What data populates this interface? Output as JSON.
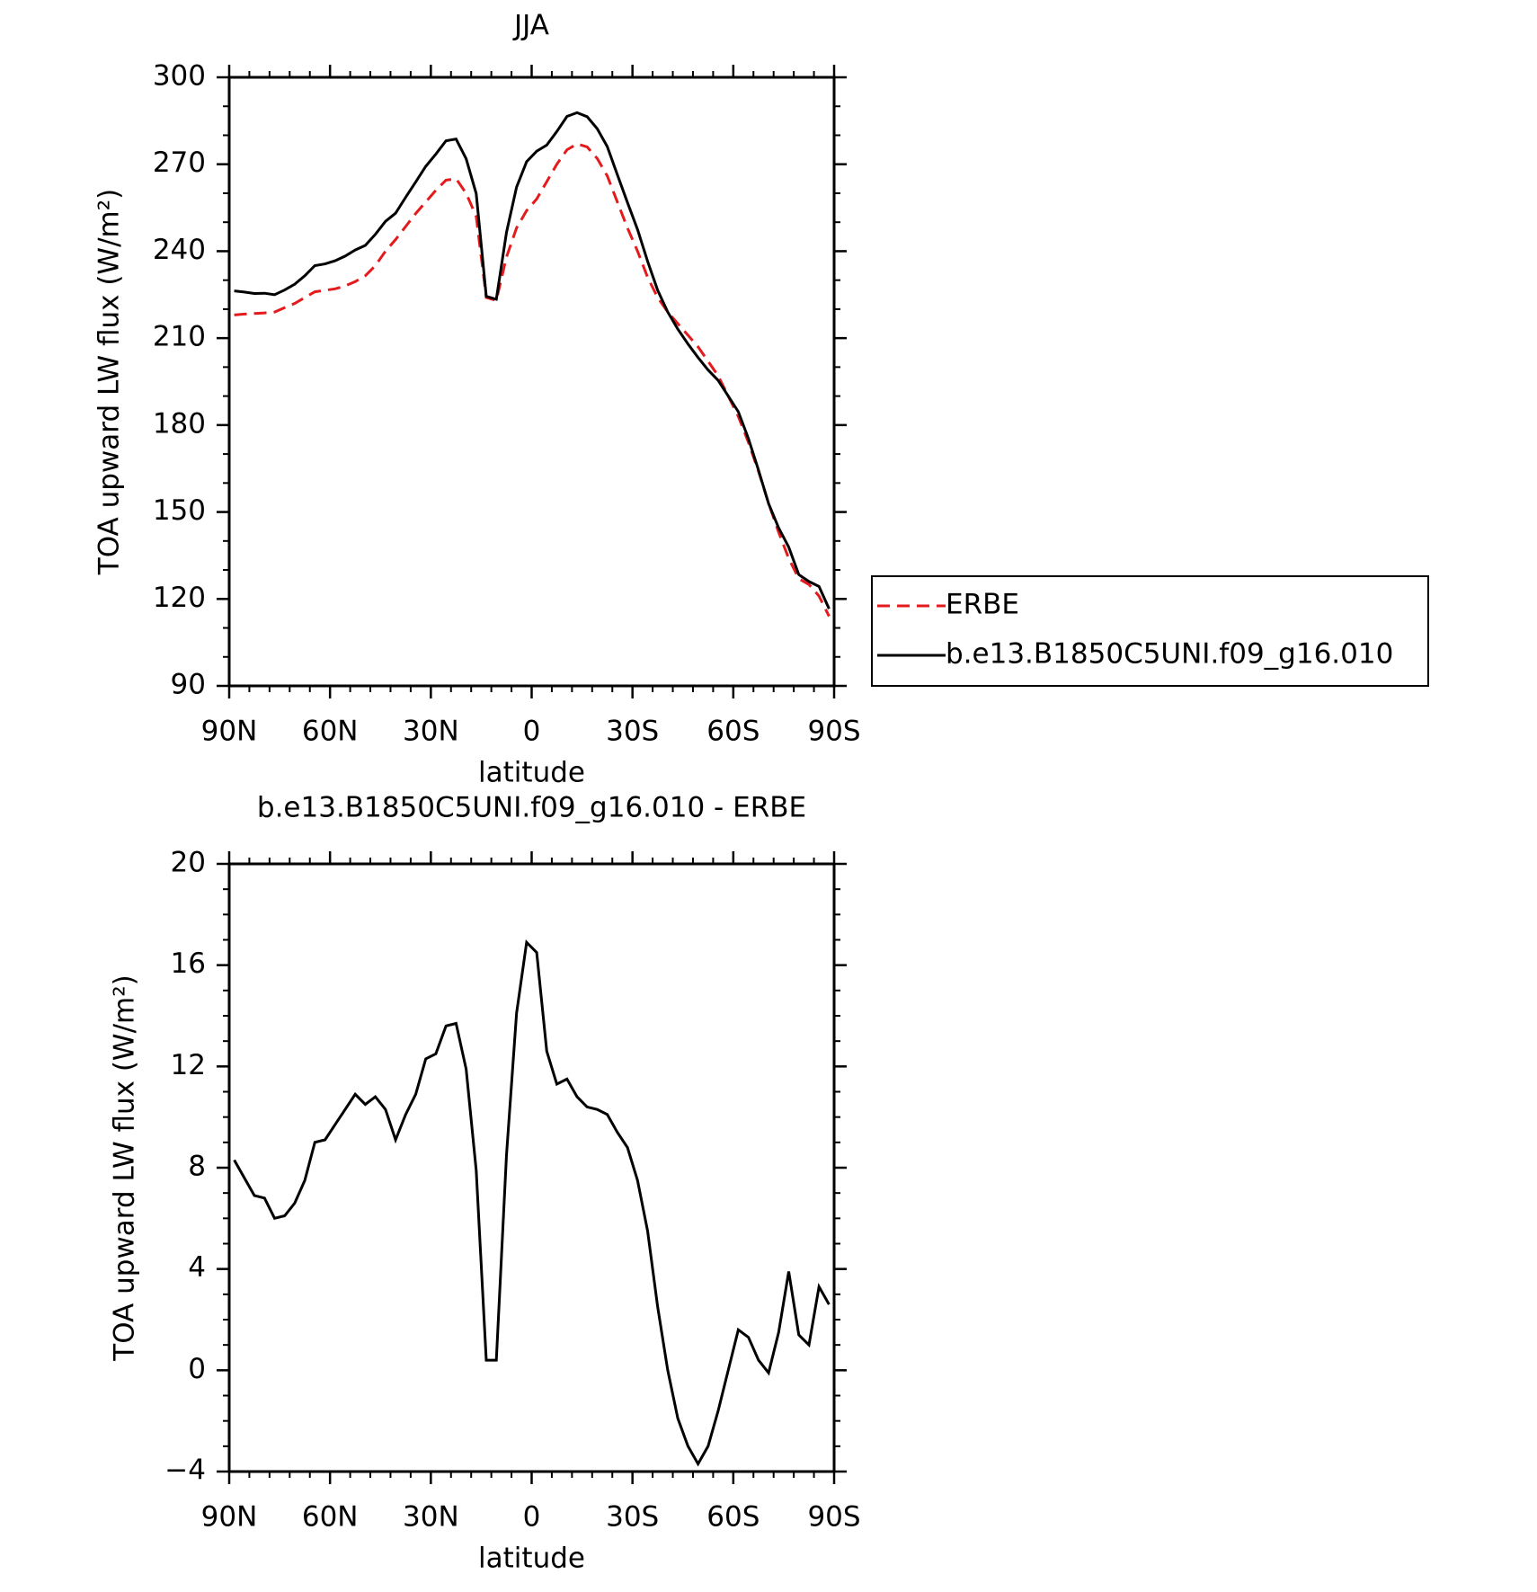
{
  "chart_data": [
    {
      "type": "line",
      "title": "JJA",
      "xlabel": "latitude",
      "ylabel": "TOA upward LW flux (W/m²)",
      "x": [
        88.5,
        85.5,
        82.5,
        79.5,
        76.5,
        73.5,
        70.5,
        67.5,
        64.5,
        61.5,
        58.5,
        55.5,
        52.5,
        49.5,
        46.5,
        43.5,
        40.5,
        37.5,
        34.5,
        31.5,
        28.5,
        25.5,
        22.5,
        19.5,
        16.5,
        13.5,
        10.5,
        7.5,
        4.5,
        1.5,
        -1.5,
        -4.5,
        -7.5,
        -10.5,
        -13.5,
        -16.5,
        -19.5,
        -22.5,
        -25.5,
        -28.5,
        -31.5,
        -34.5,
        -37.5,
        -40.5,
        -43.5,
        -46.5,
        -49.5,
        -52.5,
        -55.5,
        -58.5,
        -61.5,
        -64.5,
        -67.5,
        -70.5,
        -73.5,
        -76.5,
        -79.5,
        -82.5,
        -85.5,
        -88.5
      ],
      "xlim": [
        90,
        -90
      ],
      "xticks": [
        {
          "value": 90,
          "label": "90N"
        },
        {
          "value": 60,
          "label": "60N"
        },
        {
          "value": 30,
          "label": "30N"
        },
        0,
        {
          "value": -30,
          "label": "30S"
        },
        {
          "value": -60,
          "label": "60S"
        },
        {
          "value": -90,
          "label": "90S"
        }
      ],
      "ylim": [
        90,
        300
      ],
      "yticks": [
        90,
        120,
        150,
        180,
        210,
        240,
        270,
        300
      ],
      "legend": "right",
      "series": [
        {
          "name": "ERBE",
          "color": "#e41a1c",
          "linestyle": "dashed",
          "values": [
            218,
            218.3,
            218.5,
            218.7,
            219,
            220.5,
            222,
            224,
            226,
            226.5,
            227,
            228,
            229.5,
            231.5,
            235,
            240,
            244,
            248.5,
            253,
            257,
            261,
            264.5,
            265,
            260,
            252,
            224,
            223,
            238,
            248,
            254,
            258,
            264,
            270,
            275,
            277,
            276,
            272,
            266,
            257,
            248,
            240,
            231,
            224,
            219,
            215,
            211,
            207,
            202,
            197,
            190,
            183,
            174,
            164,
            153,
            143,
            134,
            127,
            125,
            121,
            114
          ]
        },
        {
          "name": "b.e13.B1850C5UNI.f09_g16.010",
          "color": "#000000",
          "linestyle": "solid",
          "values": [
            226.3,
            225.9,
            225.4,
            225.5,
            225.0,
            226.6,
            228.6,
            231.5,
            235.0,
            235.6,
            236.7,
            238.3,
            240.4,
            242.0,
            245.8,
            250.3,
            253.1,
            258.6,
            263.9,
            269.3,
            273.5,
            278.1,
            278.7,
            271.9,
            259.9,
            224.4,
            223.4,
            246.5,
            262.1,
            270.9,
            274.5,
            276.6,
            281.3,
            286.5,
            287.8,
            286.4,
            282.3,
            276.1,
            266.4,
            256.8,
            247.5,
            236.5,
            226.5,
            219.0,
            213.1,
            208.0,
            203.3,
            199.0,
            195.4,
            190.0,
            184.6,
            175.3,
            164.4,
            152.9,
            144.5,
            137.9,
            128.4,
            126.0,
            124.3,
            116.6
          ]
        }
      ]
    },
    {
      "type": "line",
      "title": "b.e13.B1850C5UNI.f09_g16.010 - ERBE",
      "xlabel": "latitude",
      "ylabel": "TOA upward LW flux (W/m²)",
      "x": [
        88.5,
        85.5,
        82.5,
        79.5,
        76.5,
        73.5,
        70.5,
        67.5,
        64.5,
        61.5,
        58.5,
        55.5,
        52.5,
        49.5,
        46.5,
        43.5,
        40.5,
        37.5,
        34.5,
        31.5,
        28.5,
        25.5,
        22.5,
        19.5,
        16.5,
        13.5,
        10.5,
        7.5,
        4.5,
        1.5,
        -1.5,
        -4.5,
        -7.5,
        -10.5,
        -13.5,
        -16.5,
        -19.5,
        -22.5,
        -25.5,
        -28.5,
        -31.5,
        -34.5,
        -37.5,
        -40.5,
        -43.5,
        -46.5,
        -49.5,
        -52.5,
        -55.5,
        -58.5,
        -61.5,
        -64.5,
        -67.5,
        -70.5,
        -73.5,
        -76.5,
        -79.5,
        -82.5,
        -85.5,
        -88.5
      ],
      "xlim": [
        90,
        -90
      ],
      "xticks": [
        {
          "value": 90,
          "label": "90N"
        },
        {
          "value": 60,
          "label": "60N"
        },
        {
          "value": 30,
          "label": "30N"
        },
        0,
        {
          "value": -30,
          "label": "30S"
        },
        {
          "value": -60,
          "label": "60S"
        },
        {
          "value": -90,
          "label": "90S"
        }
      ],
      "ylim": [
        -4,
        20
      ],
      "yticks": [
        {
          "value": -4,
          "label": "−4"
        },
        0,
        4,
        8,
        12,
        16,
        20
      ],
      "series": [
        {
          "color": "#000000",
          "linestyle": "solid",
          "values": [
            8.3,
            7.6,
            6.9,
            6.8,
            6.0,
            6.1,
            6.6,
            7.5,
            9.0,
            9.1,
            9.7,
            10.3,
            10.9,
            10.5,
            10.8,
            10.3,
            9.1,
            10.1,
            10.9,
            12.3,
            12.5,
            13.6,
            13.7,
            11.9,
            7.9,
            0.4,
            0.4,
            8.5,
            14.1,
            16.9,
            16.5,
            12.6,
            11.3,
            11.5,
            10.8,
            10.4,
            10.3,
            10.1,
            9.4,
            8.8,
            7.5,
            5.5,
            2.5,
            0.0,
            -1.9,
            -3.0,
            -3.7,
            -3.0,
            -1.6,
            0.0,
            1.6,
            1.3,
            0.4,
            -0.1,
            1.5,
            3.9,
            1.4,
            1.0,
            3.3,
            2.6
          ]
        }
      ]
    }
  ]
}
